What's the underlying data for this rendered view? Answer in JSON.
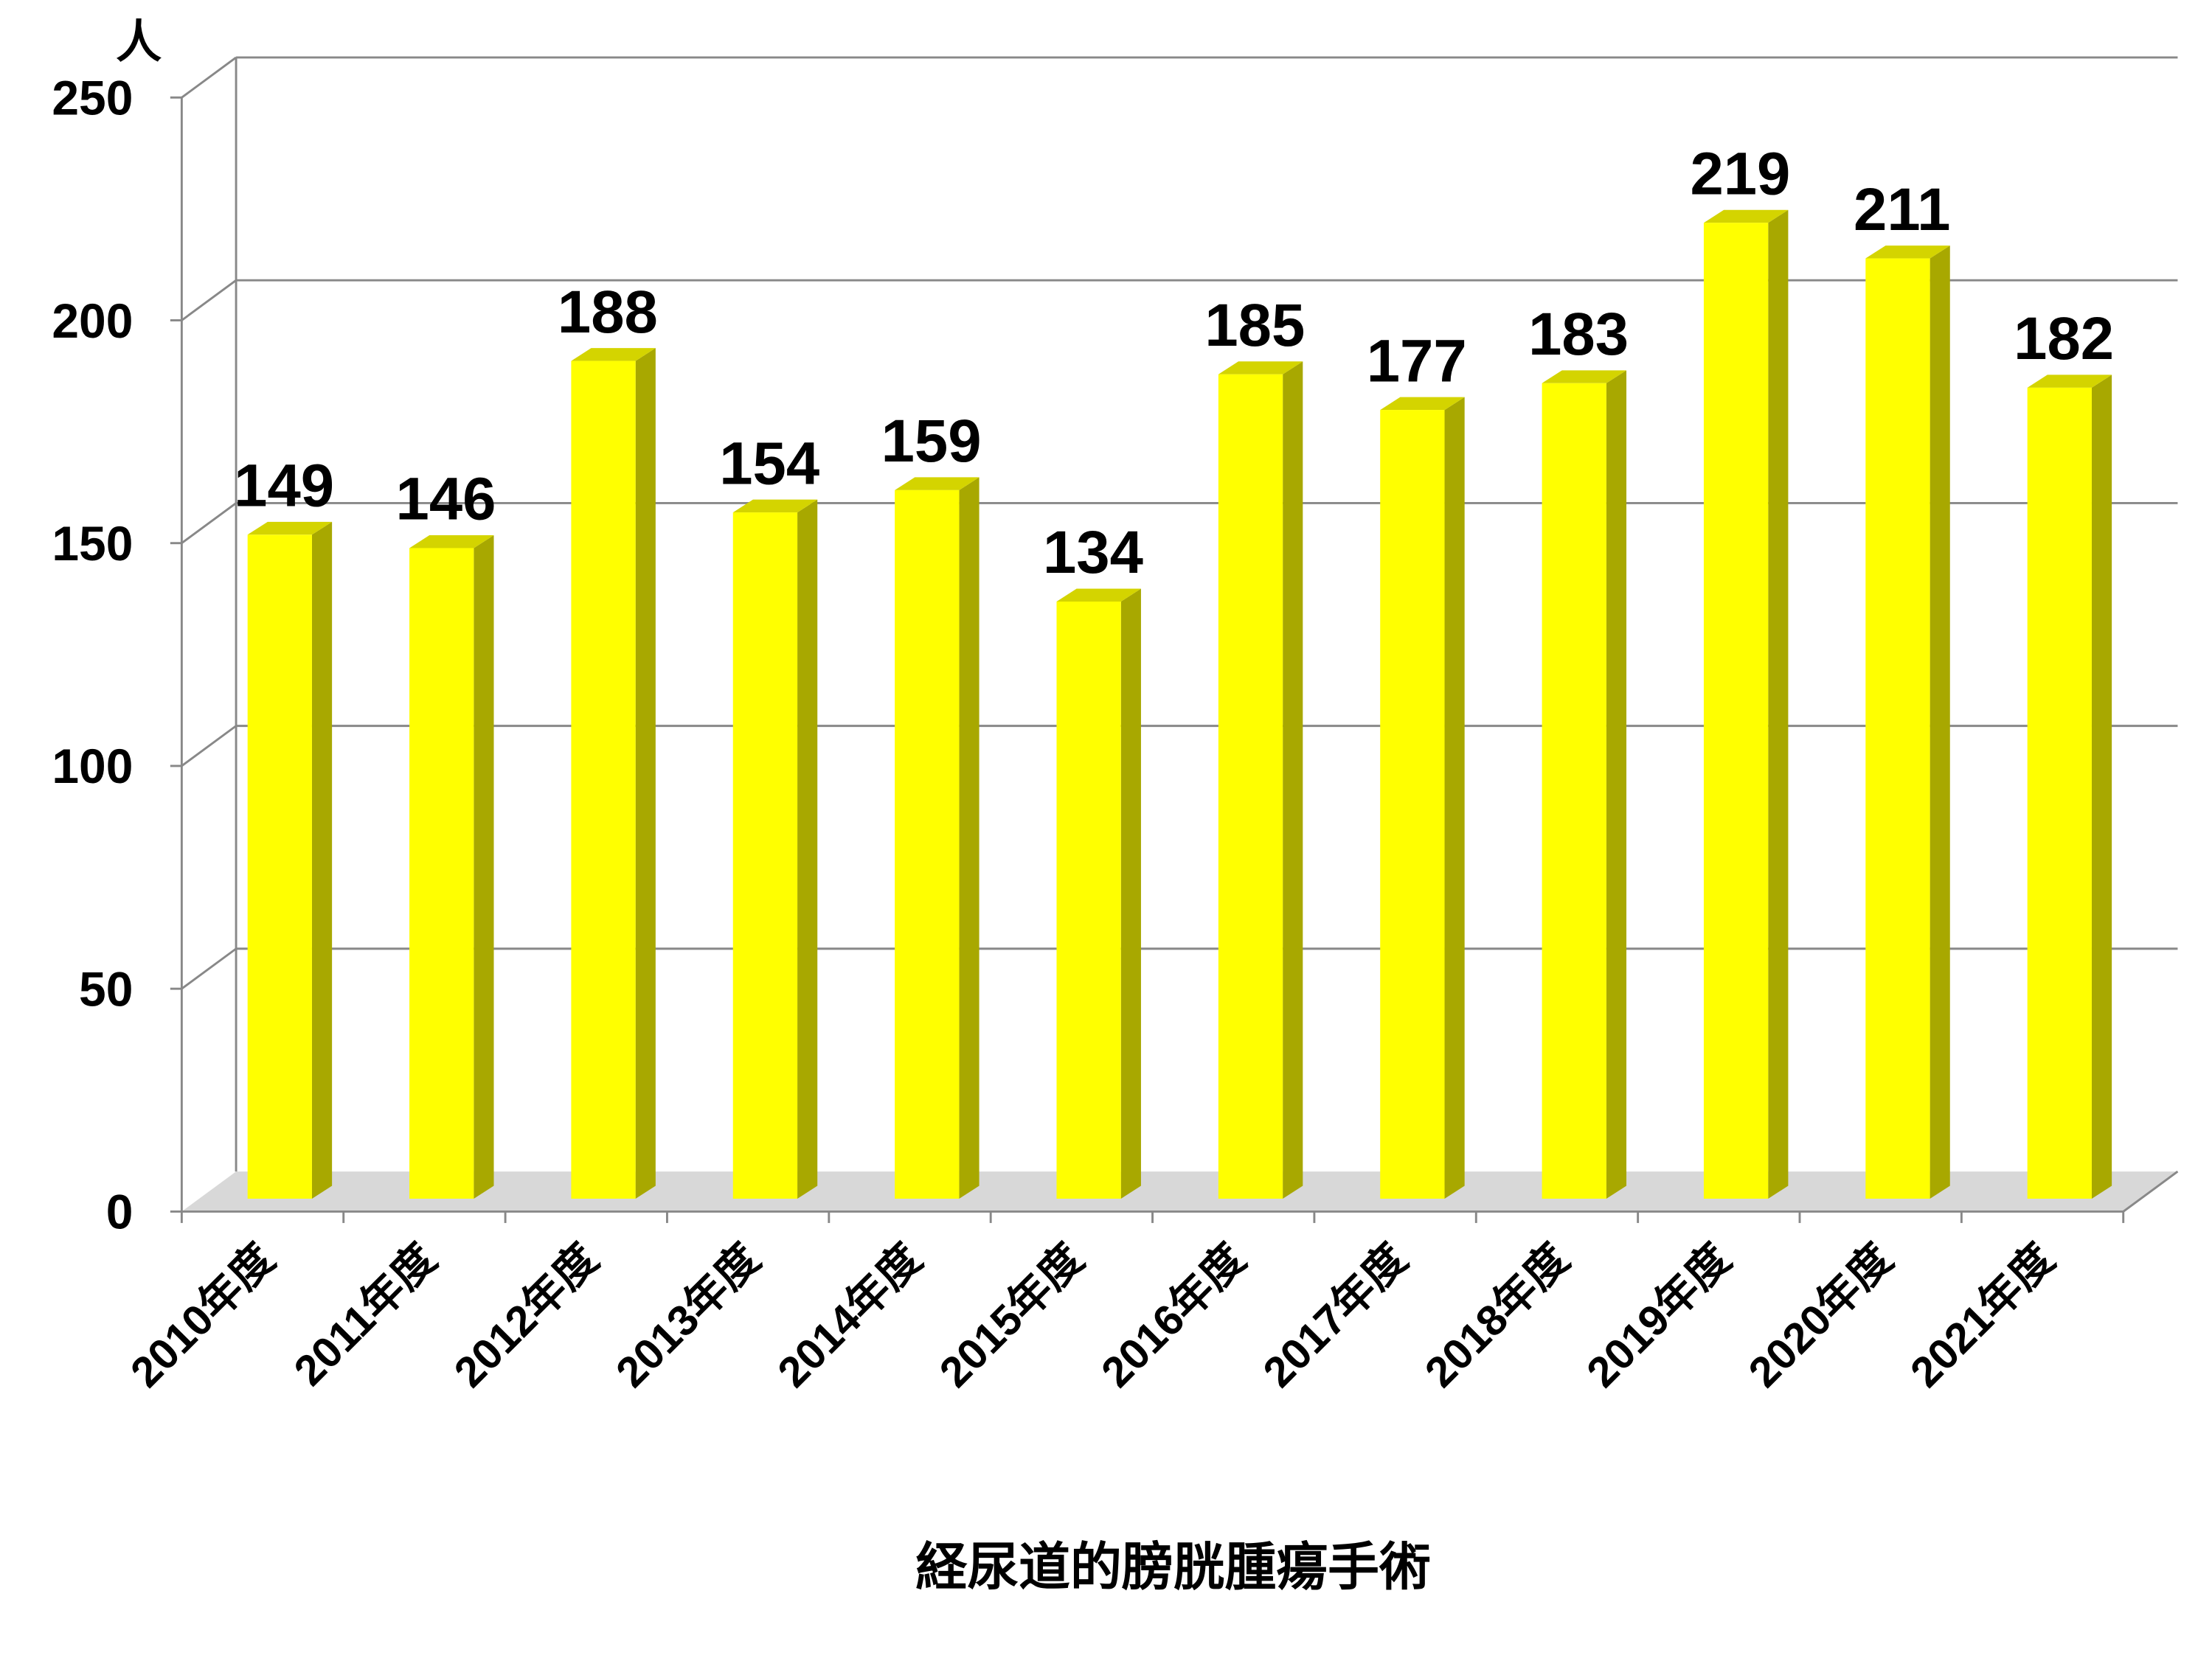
{
  "chart_data": {
    "type": "bar",
    "y_unit": "人",
    "x_label": "経尿道的膀胱腫瘍手術",
    "categories": [
      "2010年度",
      "2011年度",
      "2012年度",
      "2013年度",
      "2014年度",
      "2015年度",
      "2016年度",
      "2017年度",
      "2018年度",
      "2019年度",
      "2020年度",
      "2021年度"
    ],
    "values": [
      149,
      146,
      188,
      154,
      159,
      134,
      185,
      177,
      183,
      219,
      211,
      182
    ],
    "color": "#ffff00",
    "ylim": [
      0,
      250
    ],
    "yticks": [
      0,
      50,
      100,
      150,
      200,
      250
    ],
    "grid": true
  }
}
